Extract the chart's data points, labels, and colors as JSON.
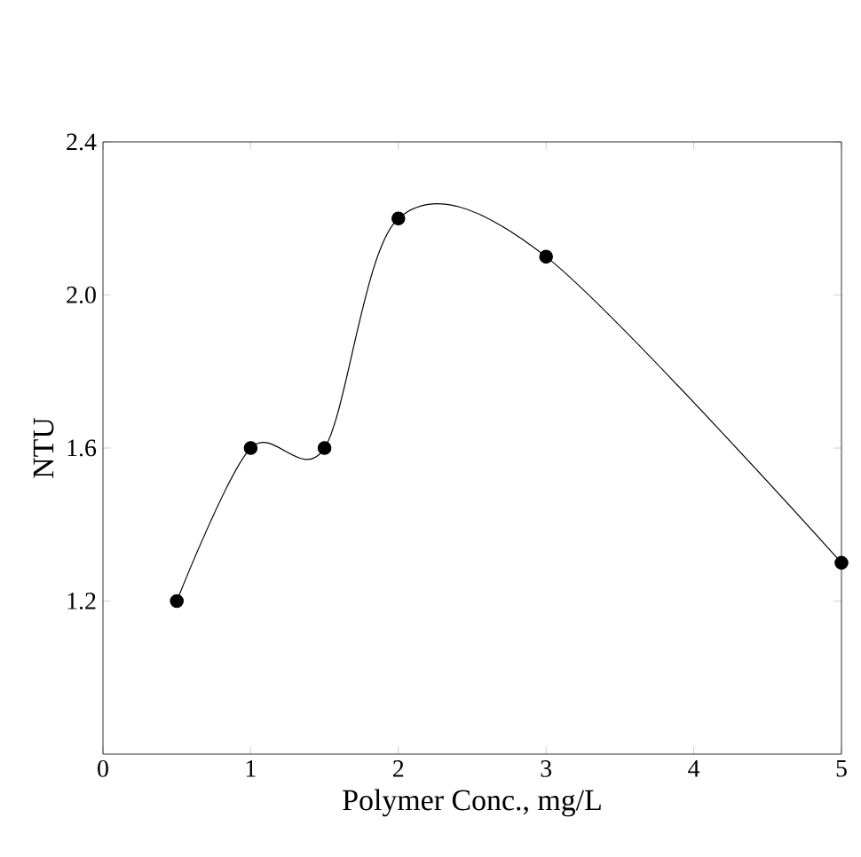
{
  "chart_data": {
    "type": "line",
    "xlabel": "Polymer Conc., mg/L",
    "ylabel": "NTU",
    "x": [
      0.5,
      1,
      1.5,
      2,
      3,
      5
    ],
    "series": [
      {
        "color": "#000000",
        "values": [
          1.2,
          1.6,
          1.6,
          2.2,
          2.1,
          1.3
        ]
      }
    ],
    "xlim": [
      0,
      5
    ],
    "ylim": [
      0.8,
      2.4
    ],
    "xticks": [
      0,
      1,
      2,
      3,
      4,
      5
    ],
    "yticks": [
      {
        "value": 1.2,
        "label": "1.2"
      },
      {
        "value": 1.6,
        "label": "1.6"
      },
      {
        "value": 2.0,
        "label": "2.0"
      },
      {
        "value": 2.4,
        "label": "2.4"
      }
    ],
    "marker": "circle",
    "line_style": "solid"
  }
}
